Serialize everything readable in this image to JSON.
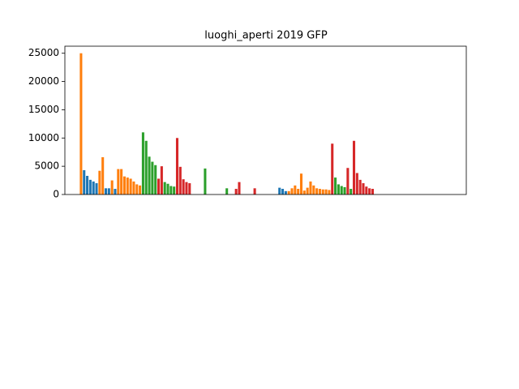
{
  "chart_data": {
    "type": "bar",
    "title": "luoghi_aperti  2019  GFP",
    "values": [
      25000,
      4300,
      3300,
      2600,
      2300,
      2000,
      4200,
      6600,
      1100,
      1100,
      2500,
      1000,
      4500,
      4500,
      3200,
      3000,
      2800,
      2300,
      1800,
      1600,
      11000,
      9500,
      6700,
      5800,
      5200,
      2800,
      5000,
      2200,
      1900,
      1500,
      1400,
      10000,
      4900,
      2700,
      2200,
      2000,
      0,
      0,
      0,
      0,
      4600,
      0,
      0,
      0,
      0,
      0,
      0,
      1100,
      0,
      0,
      1000,
      2200,
      0,
      0,
      0,
      0,
      1100,
      0,
      0,
      0,
      0,
      0,
      0,
      0,
      1200,
      1000,
      600,
      600,
      1100,
      1600,
      1000,
      3700,
      700,
      1200,
      2300,
      1600,
      1100,
      1000,
      900,
      900,
      800,
      9000,
      3000,
      1800,
      1500,
      1300,
      4700,
      1000,
      9500,
      3800,
      2600,
      2000,
      1400,
      1100,
      1000,
      0,
      0,
      0,
      0,
      0,
      0,
      0,
      0,
      0,
      0,
      0,
      0,
      0,
      0,
      0,
      0,
      0,
      0,
      0,
      0,
      0,
      0,
      0,
      0,
      0
    ],
    "colors": [
      "#ff7f0e",
      "#1f77b4",
      "#1f77b4",
      "#1f77b4",
      "#1f77b4",
      "#1f77b4",
      "#ff7f0e",
      "#ff7f0e",
      "#1f77b4",
      "#1f77b4",
      "#ff7f0e",
      "#1f77b4",
      "#ff7f0e",
      "#ff7f0e",
      "#ff7f0e",
      "#ff7f0e",
      "#ff7f0e",
      "#ff7f0e",
      "#ff7f0e",
      "#ff7f0e",
      "#2ca02c",
      "#2ca02c",
      "#2ca02c",
      "#2ca02c",
      "#2ca02c",
      "#d62728",
      "#d62728",
      "#2ca02c",
      "#2ca02c",
      "#2ca02c",
      "#2ca02c",
      "#d62728",
      "#d62728",
      "#d62728",
      "#d62728",
      "#d62728",
      "#d62728",
      "#d62728",
      "#d62728",
      "#d62728",
      "#2ca02c",
      "#2ca02c",
      "#2ca02c",
      "#2ca02c",
      "#2ca02c",
      "#2ca02c",
      "#2ca02c",
      "#2ca02c",
      "#2ca02c",
      "#2ca02c",
      "#d62728",
      "#d62728",
      "#d62728",
      "#d62728",
      "#d62728",
      "#d62728",
      "#d62728",
      "#d62728",
      "#d62728",
      "#d62728",
      "#1f77b4",
      "#1f77b4",
      "#1f77b4",
      "#1f77b4",
      "#1f77b4",
      "#1f77b4",
      "#1f77b4",
      "#ff7f0e",
      "#ff7f0e",
      "#ff7f0e",
      "#ff7f0e",
      "#ff7f0e",
      "#ff7f0e",
      "#ff7f0e",
      "#ff7f0e",
      "#ff7f0e",
      "#ff7f0e",
      "#ff7f0e",
      "#ff7f0e",
      "#ff7f0e",
      "#ff7f0e",
      "#d62728",
      "#2ca02c",
      "#2ca02c",
      "#2ca02c",
      "#2ca02c",
      "#d62728",
      "#2ca02c",
      "#d62728",
      "#d62728",
      "#d62728",
      "#d62728",
      "#d62728",
      "#d62728",
      "#d62728",
      "#1f77b4",
      "#1f77b4",
      "#1f77b4",
      "#1f77b4",
      "#1f77b4",
      "#1f77b4",
      "#1f77b4",
      "#1f77b4",
      "#1f77b4",
      "#1f77b4",
      "#1f77b4",
      "#1f77b4",
      "#1f77b4",
      "#1f77b4",
      "#1f77b4",
      "#1f77b4",
      "#1f77b4",
      "#1f77b4",
      "#1f77b4",
      "#1f77b4",
      "#1f77b4",
      "#1f77b4",
      "#1f77b4",
      "#1f77b4",
      "#1f77b4"
    ],
    "ylim": [
      0,
      26250
    ],
    "yticks": [
      0,
      5000,
      10000,
      15000,
      20000,
      25000
    ]
  }
}
